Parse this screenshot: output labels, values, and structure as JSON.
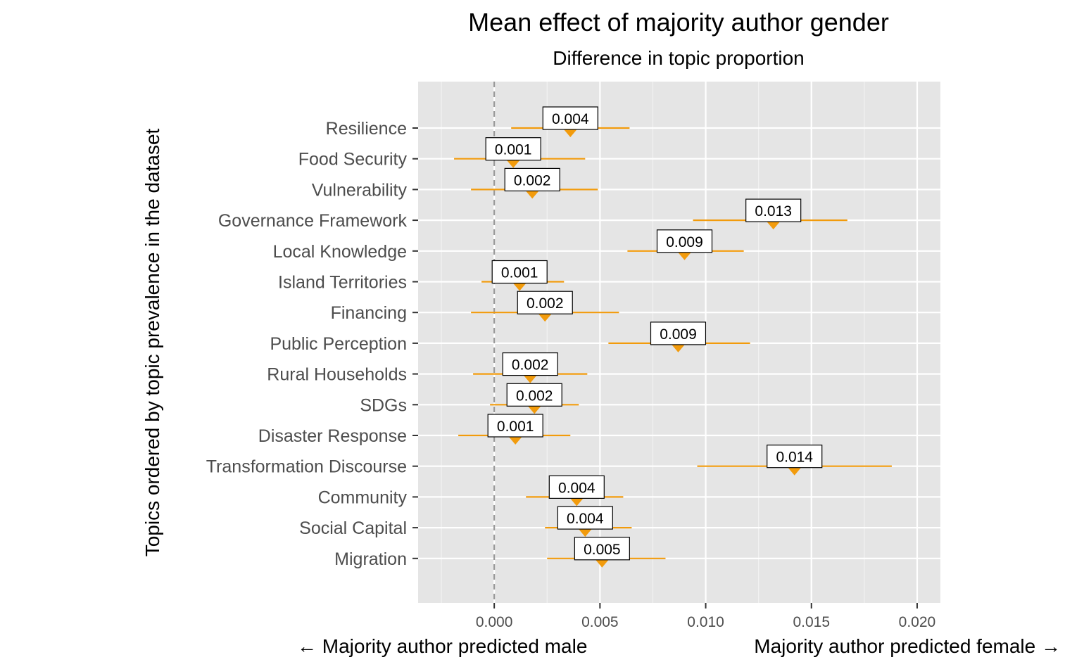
{
  "chart_data": {
    "type": "scatter",
    "title": "Mean effect of majority author gender",
    "subtitle": "Difference in topic proportion",
    "ylabel": "Topics ordered by topic prevalence in the dataset",
    "xlabel_left": "← Majority author predicted male",
    "xlabel_right": "Majority author predicted female →",
    "xlim": [
      -0.0036,
      0.0211
    ],
    "xticks": [
      0.0,
      0.005,
      0.01,
      0.015,
      0.02
    ],
    "xtick_labels": [
      "0.000",
      "0.005",
      "0.010",
      "0.015",
      "0.020"
    ],
    "reference_line_x": 0.0,
    "grid": true,
    "marker_color": "#F29B0C",
    "panel_color": "#E5E5E5",
    "points": [
      {
        "topic": "Resilience",
        "estimate": 0.0036,
        "lower": 0.0008,
        "upper": 0.0064,
        "label": "0.004"
      },
      {
        "topic": "Food Security",
        "estimate": 0.0009,
        "lower": -0.0019,
        "upper": 0.0043,
        "label": "0.001"
      },
      {
        "topic": "Vulnerability",
        "estimate": 0.0018,
        "lower": -0.0011,
        "upper": 0.0049,
        "label": "0.002"
      },
      {
        "topic": "Governance Framework",
        "estimate": 0.0132,
        "lower": 0.0094,
        "upper": 0.0167,
        "label": "0.013"
      },
      {
        "topic": "Local Knowledge",
        "estimate": 0.009,
        "lower": 0.0063,
        "upper": 0.0118,
        "label": "0.009"
      },
      {
        "topic": "Island Territories",
        "estimate": 0.0012,
        "lower": -0.0006,
        "upper": 0.0033,
        "label": "0.001"
      },
      {
        "topic": "Financing",
        "estimate": 0.0024,
        "lower": -0.0011,
        "upper": 0.0059,
        "label": "0.002"
      },
      {
        "topic": "Public Perception",
        "estimate": 0.0087,
        "lower": 0.0054,
        "upper": 0.0121,
        "label": "0.009"
      },
      {
        "topic": "Rural Households",
        "estimate": 0.0017,
        "lower": -0.001,
        "upper": 0.0044,
        "label": "0.002"
      },
      {
        "topic": "SDGs",
        "estimate": 0.0019,
        "lower": -0.0002,
        "upper": 0.004,
        "label": "0.002"
      },
      {
        "topic": "Disaster Response",
        "estimate": 0.001,
        "lower": -0.0017,
        "upper": 0.0036,
        "label": "0.001"
      },
      {
        "topic": "Transformation Discourse",
        "estimate": 0.0142,
        "lower": 0.0096,
        "upper": 0.0188,
        "label": "0.014"
      },
      {
        "topic": "Community",
        "estimate": 0.0039,
        "lower": 0.0015,
        "upper": 0.0061,
        "label": "0.004"
      },
      {
        "topic": "Social Capital",
        "estimate": 0.0043,
        "lower": 0.0024,
        "upper": 0.0065,
        "label": "0.004"
      },
      {
        "topic": "Migration",
        "estimate": 0.0051,
        "lower": 0.0025,
        "upper": 0.0081,
        "label": "0.005"
      }
    ]
  }
}
